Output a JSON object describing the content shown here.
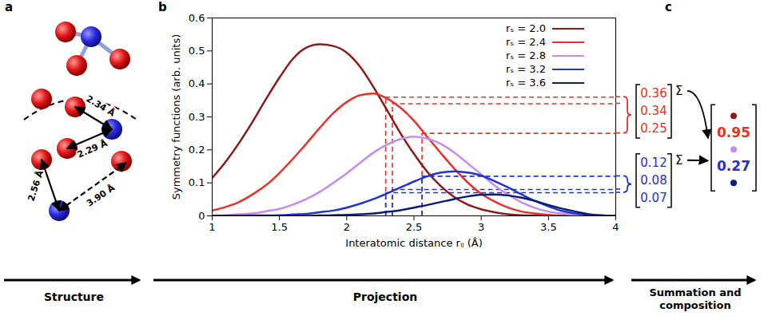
{
  "chart_data": {
    "type": "line",
    "x_label": "Interatomic distance rᵢⱼ (Å)",
    "y_label": "Symmetry functions (arb. units)",
    "x": [
      1,
      1.1,
      1.2,
      1.3,
      1.4,
      1.5,
      1.6,
      1.7,
      1.8,
      1.9,
      2,
      2.1,
      2.2,
      2.3,
      2.4,
      2.5,
      2.6,
      2.7,
      2.8,
      2.9,
      3,
      3.1,
      3.2,
      3.3,
      3.4,
      3.5,
      3.6,
      3.7,
      3.8,
      3.9,
      4
    ],
    "series": [
      {
        "name": "rₛ = 2.0",
        "color": "#8b1a1a",
        "values": [
          0.115,
          0.164,
          0.221,
          0.285,
          0.354,
          0.419,
          0.476,
          0.51,
          0.52,
          0.515,
          0.495,
          0.452,
          0.39,
          0.32,
          0.25,
          0.188,
          0.133,
          0.09,
          0.057,
          0.034,
          0.02,
          0.011,
          0.005,
          0.002,
          0.001,
          0,
          0,
          0,
          0,
          0,
          0
        ]
      },
      {
        "name": "rₛ = 2.4",
        "color": "#e8312b",
        "values": [
          0.016,
          0.027,
          0.042,
          0.065,
          0.093,
          0.13,
          0.173,
          0.219,
          0.267,
          0.311,
          0.345,
          0.366,
          0.371,
          0.356,
          0.328,
          0.288,
          0.239,
          0.19,
          0.143,
          0.101,
          0.067,
          0.043,
          0.025,
          0.013,
          0.007,
          0.003,
          0.001,
          0,
          0,
          0,
          0
        ]
      },
      {
        "name": "rₛ = 2.8",
        "color": "#c58cf0",
        "values": [
          0.001,
          0.002,
          0.005,
          0.007,
          0.014,
          0.021,
          0.034,
          0.051,
          0.073,
          0.1,
          0.129,
          0.161,
          0.192,
          0.216,
          0.233,
          0.24,
          0.234,
          0.218,
          0.192,
          0.159,
          0.126,
          0.092,
          0.064,
          0.041,
          0.024,
          0.013,
          0.007,
          0.003,
          0.001,
          0,
          0
        ]
      },
      {
        "name": "rₛ = 3.2",
        "color": "#2233cc",
        "values": [
          0,
          0,
          0,
          0.001,
          0.001,
          0.002,
          0.004,
          0.006,
          0.011,
          0.016,
          0.025,
          0.037,
          0.051,
          0.068,
          0.086,
          0.104,
          0.12,
          0.131,
          0.135,
          0.131,
          0.122,
          0.105,
          0.086,
          0.065,
          0.045,
          0.029,
          0.015,
          0.007,
          0.003,
          0.001,
          0
        ]
      },
      {
        "name": "rₛ = 3.6",
        "color": "#0b1b7a",
        "values": [
          0,
          0,
          0,
          0,
          0,
          0,
          0,
          0,
          0.001,
          0.002,
          0.003,
          0.005,
          0.007,
          0.012,
          0.017,
          0.025,
          0.033,
          0.042,
          0.051,
          0.059,
          0.064,
          0.065,
          0.062,
          0.055,
          0.045,
          0.033,
          0.022,
          0.013,
          0.005,
          0.001,
          0
        ]
      }
    ],
    "xlim": [
      1,
      4
    ],
    "xticks": [
      1,
      1.5,
      2,
      2.5,
      3,
      3.5,
      4
    ],
    "ylim": [
      0,
      0.6
    ],
    "yticks": [
      0,
      0.1,
      0.2,
      0.3,
      0.4,
      0.5,
      0.6
    ],
    "grid": false,
    "legend": "top-right",
    "projections": [
      {
        "series": "rₛ = 2.4",
        "distances": [
          2.29,
          2.34,
          2.56
        ],
        "values": [
          0.36,
          0.34,
          0.25
        ],
        "sum": 0.95
      },
      {
        "series": "rₛ = 3.2",
        "distances": [
          2.56,
          2.34,
          2.29
        ],
        "values": [
          0.12,
          0.08,
          0.07
        ],
        "sum": 0.27
      }
    ]
  },
  "panel_labels": [
    "a",
    "b",
    "c"
  ],
  "structure": {
    "distance_labels": [
      "2.34 Å",
      "2.29 Å",
      "2.56 Å",
      "3.90 Å"
    ]
  },
  "composition": {
    "sum_symbol": "Σ"
  },
  "stages": [
    "Structure",
    "Projection",
    "Summation and composition"
  ]
}
